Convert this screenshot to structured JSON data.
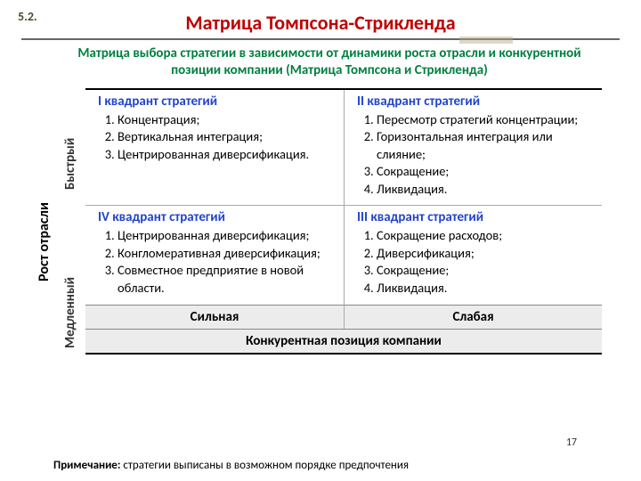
{
  "colors": {
    "title": "#c00000",
    "subtitle": "#008040",
    "quad_title": "#2244cc",
    "section_num": "#4a4a2a",
    "cell_header_bg": "#ececec"
  },
  "section_number": "5.2.",
  "title": "Матрица Томпсона-Стрикленда",
  "subtitle": "Матрица выбора стратегии в зависимости от динамики роста отрасли и конкурентной позиции компании (Матрица Томпсона и Стрикленда)",
  "y_axis_label": "Рост отрасли",
  "y_sub_labels": {
    "fast": "Быстрый",
    "slow": "Медленный"
  },
  "x_axis_label": "Конкурентная позиция компании",
  "x_sub_labels": {
    "strong": "Сильная",
    "weak": "Слабая"
  },
  "quadrants": {
    "q1": {
      "title": "I квадрант стратегий",
      "items": [
        "Концентрация;",
        "Вертикальная интеграция;",
        "Центрированная диверсификация."
      ]
    },
    "q2": {
      "title": "II квадрант стратегий",
      "items": [
        "Пересмотр стратегий концентрации;",
        "Горизонтальная интеграция или слияние;",
        "Сокращение;",
        "Ликвидация."
      ]
    },
    "q4": {
      "title": "IV квадрант стратегий",
      "items": [
        "Центрированная диверсификация;",
        "Конгломеративная диверсификация;",
        "Совместное предприятие в новой области."
      ]
    },
    "q3": {
      "title": "III квадрант стратегий",
      "items": [
        "Сокращение расходов;",
        "Диверсификация;",
        "Сокращение;",
        "Ликвидация."
      ]
    }
  },
  "page_number": "17",
  "note_label": "Примечание:",
  "note_text": " стратегии выписаны в возможном порядке предпочтения"
}
